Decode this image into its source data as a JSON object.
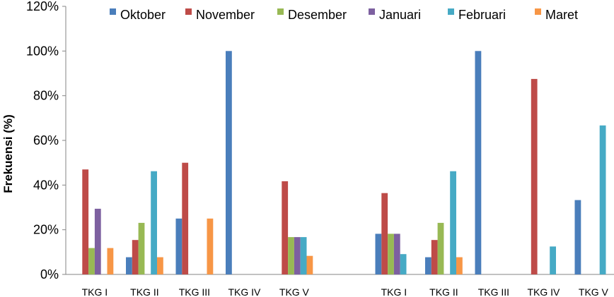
{
  "chart_data": {
    "type": "bar",
    "title": "",
    "xlabel": "",
    "ylabel": "Frekuensi (%)",
    "ylim": [
      0,
      120
    ],
    "yticks": [
      "0%",
      "20%",
      "40%",
      "60%",
      "80%",
      "100%",
      "120%"
    ],
    "grid": false,
    "legend_position": "top",
    "categories": [
      "TKG I",
      "TKG II",
      "TKG III",
      "TKG IV",
      "TKG V",
      "TKG I",
      "TKG II",
      "TKG III",
      "TKG IV",
      "TKG V"
    ],
    "series": [
      {
        "name": "Oktober",
        "color": "#4a7ebb",
        "values": [
          0,
          7.7,
          25,
          100,
          0,
          18.2,
          7.7,
          100,
          0,
          33.3
        ]
      },
      {
        "name": "November",
        "color": "#be4b48",
        "values": [
          47,
          15.4,
          50,
          0,
          41.7,
          36.4,
          15.4,
          0,
          87.5,
          0
        ]
      },
      {
        "name": "Desember",
        "color": "#98b954",
        "values": [
          11.8,
          23.1,
          0,
          0,
          16.7,
          18.2,
          23.1,
          0,
          0,
          0
        ]
      },
      {
        "name": "Januari",
        "color": "#7d60a0",
        "values": [
          29.4,
          0,
          0,
          0,
          16.7,
          18.2,
          0,
          0,
          0,
          0
        ]
      },
      {
        "name": "Februari",
        "color": "#46aac5",
        "values": [
          0,
          46.2,
          0,
          0,
          16.7,
          9.1,
          46.2,
          0,
          12.5,
          66.7
        ]
      },
      {
        "name": "Maret",
        "color": "#f79646",
        "values": [
          11.8,
          7.7,
          25,
          0,
          8.3,
          0,
          7.7,
          0,
          0,
          0
        ]
      }
    ]
  }
}
